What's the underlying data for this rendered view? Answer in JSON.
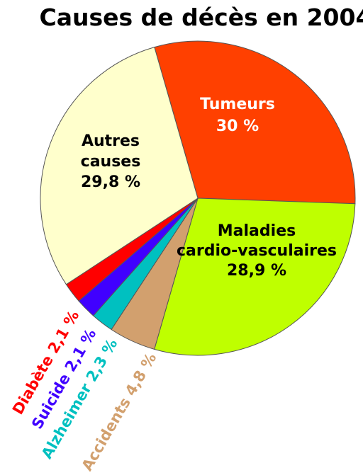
{
  "chart_data": {
    "type": "pie",
    "title": "Causes de décès en 2004",
    "slices": [
      {
        "label": "Tumeurs",
        "label_lines": [
          "Tumeurs",
          "30 %"
        ],
        "value": 30.0,
        "color": "#FF4000",
        "text_color": "#FFFFFF"
      },
      {
        "label": "Maladies cardio-vasculaires",
        "label_lines": [
          "Maladies",
          "cardio-vasculaires",
          "28,9 %"
        ],
        "value": 28.9,
        "color": "#BFFF00",
        "text_color": "#000000"
      },
      {
        "label": "Accidents",
        "label_lines": [
          "Accidents 4,8 %"
        ],
        "value": 4.8,
        "color": "#D2A06E",
        "text_color": "#D2A06E"
      },
      {
        "label": "Alzheimer",
        "label_lines": [
          "Alzheimer 2,3 %"
        ],
        "value": 2.3,
        "color": "#00C0C0",
        "text_color": "#00C0C0"
      },
      {
        "label": "Suicide",
        "label_lines": [
          "Suicide 2,1 %"
        ],
        "value": 2.1,
        "color": "#4000FF",
        "text_color": "#4000FF"
      },
      {
        "label": "Diabète",
        "label_lines": [
          "Diabète 2,1 %"
        ],
        "value": 2.1,
        "color": "#FF0000",
        "text_color": "#FF0000"
      },
      {
        "label": "Autres causes",
        "label_lines": [
          "Autres",
          "causes",
          "29,8 %"
        ],
        "value": 29.8,
        "color": "#FFFFCC",
        "text_color": "#000000"
      }
    ],
    "legend": "none"
  }
}
